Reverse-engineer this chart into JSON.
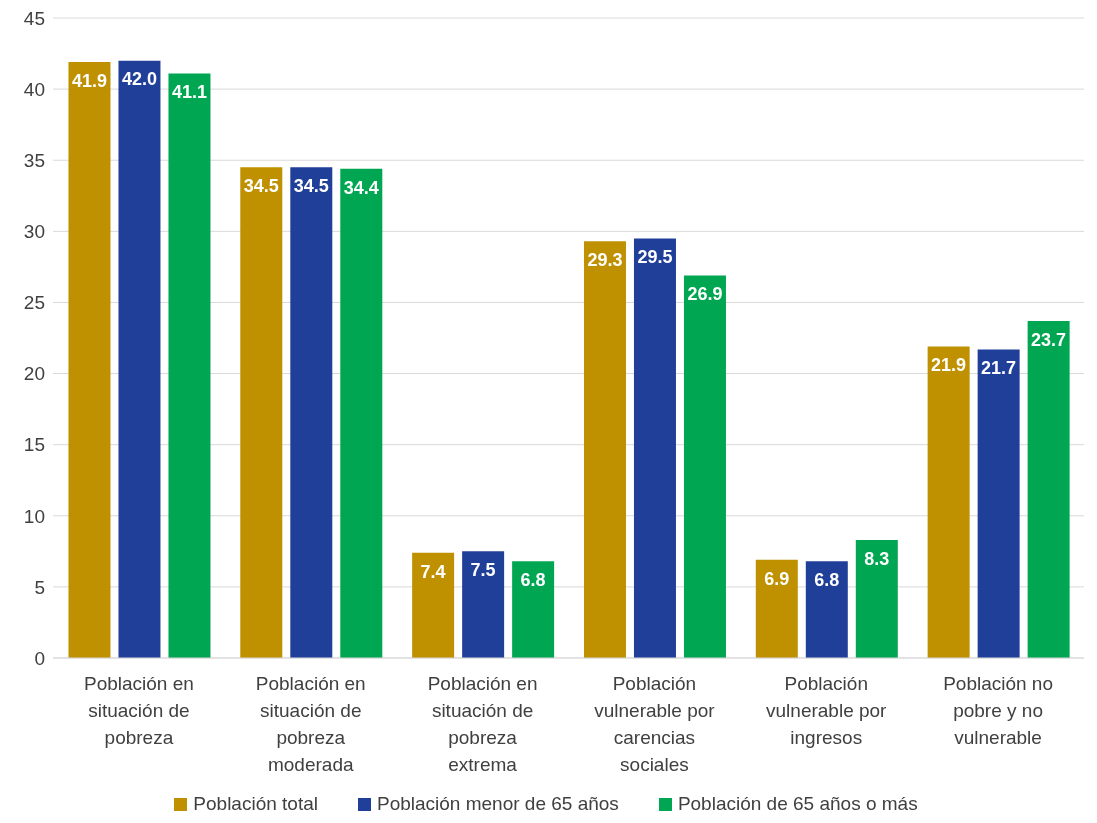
{
  "chart_data": {
    "type": "bar",
    "categories": [
      "Población en situación de pobreza",
      "Población en situación de pobreza moderada",
      "Población en situación de pobreza extrema",
      "Población vulnerable por carencias sociales",
      "Población vulnerable por ingresos",
      "Población no pobre y no vulnerable"
    ],
    "series": [
      {
        "name": "Población total",
        "color": "#bf9000",
        "values": [
          41.9,
          34.5,
          7.4,
          29.3,
          6.9,
          21.9
        ],
        "value_labels": [
          "41.9",
          "34.5",
          "7.4",
          "29.3",
          "6.9",
          "21.9"
        ]
      },
      {
        "name": "Población menor de 65 años",
        "color": "#203f99",
        "values": [
          42.0,
          34.5,
          7.5,
          29.5,
          6.8,
          21.7
        ],
        "value_labels": [
          "42.0",
          "34.5",
          "7.5",
          "29.5",
          "6.8",
          "21.7"
        ]
      },
      {
        "name": "Población de 65 años o más",
        "color": "#00a651",
        "values": [
          41.1,
          34.4,
          6.8,
          26.9,
          8.3,
          23.7
        ],
        "value_labels": [
          "41.1",
          "34.4",
          "6.8",
          "26.9",
          "8.3",
          "23.7"
        ]
      }
    ],
    "ylim": [
      0,
      45
    ],
    "yticks": [
      0,
      5,
      10,
      15,
      20,
      25,
      30,
      35,
      40,
      45
    ],
    "grid": "y",
    "legend": "bottom"
  }
}
